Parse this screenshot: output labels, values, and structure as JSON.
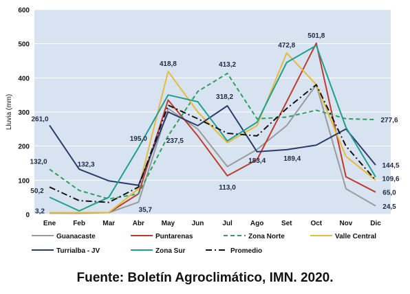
{
  "source_note": "Fuente: Boletín Agroclimático, IMN. 2020.",
  "colors": {
    "plot_bg": "#d7e3f0",
    "grid": "#ffffff",
    "axis_text": "#111111",
    "label_text": "#1f2a44"
  },
  "chart_data": {
    "type": "line",
    "title": "",
    "xlabel": "",
    "ylabel": "Lluvia (mm)",
    "ylim": [
      0,
      600
    ],
    "yticks": [
      0,
      100,
      200,
      300,
      400,
      500,
      600
    ],
    "grid": true,
    "legend_position": "bottom",
    "categories": [
      "Ene",
      "Feb",
      "Mar",
      "Abr",
      "May",
      "Jun",
      "Jul",
      "Ago",
      "Set",
      "Oct",
      "Nov",
      "Dic"
    ],
    "series": [
      {
        "name": "Guanacaste",
        "color": "#9a9a9a",
        "dash": "solid",
        "values": [
          3.2,
          3,
          5,
          35.7,
          310,
          250,
          140,
          190,
          260,
          380,
          75,
          24.5
        ]
      },
      {
        "name": "Puntarenas",
        "color": "#c0392b",
        "dash": "solid",
        "values": [
          5,
          5,
          5,
          60,
          335,
          230,
          113,
          160,
          330,
          501.8,
          110,
          65.0
        ]
      },
      {
        "name": "Zona Norte",
        "color": "#2e9e5b",
        "dash": "dashed",
        "values": [
          132.0,
          70,
          45,
          60,
          230,
          360,
          413.2,
          280,
          285,
          305,
          280,
          277.6
        ]
      },
      {
        "name": "Valle Central",
        "color": "#e8b93a",
        "dash": "solid",
        "values": [
          5,
          5,
          5,
          75,
          418.8,
          300,
          210,
          260,
          472.8,
          380,
          170,
          100
        ]
      },
      {
        "name": "Turrialba - JV",
        "color": "#2a3a6b",
        "dash": "solid",
        "values": [
          261.0,
          132.3,
          98,
          85,
          300,
          260,
          318.2,
          183.4,
          189.4,
          203,
          250,
          144.5
        ]
      },
      {
        "name": "Zona Sur",
        "color": "#1f9e8e",
        "dash": "solid",
        "values": [
          50.2,
          10,
          50,
          195.0,
          350,
          330,
          215,
          270,
          445,
          495,
          255,
          109.6
        ]
      },
      {
        "name": "Promedio",
        "color": "#111111",
        "dash": "dashdot",
        "values": [
          80,
          40,
          35,
          80,
          320,
          280,
          237.5,
          230,
          310,
          380,
          200,
          100
        ]
      }
    ],
    "annotations": [
      {
        "text": "261,0",
        "x": "Ene",
        "y": 261.0
      },
      {
        "text": "132,0",
        "x": "Ene",
        "y": 132.0
      },
      {
        "text": "50,2",
        "x": "Ene",
        "y": 50.2
      },
      {
        "text": "3,2",
        "x": "Ene",
        "y": 3.2
      },
      {
        "text": "132,3",
        "x": "Feb",
        "y": 132.3
      },
      {
        "text": "195,0",
        "x": "Abr",
        "y": 195.0
      },
      {
        "text": "35,7",
        "x": "Abr",
        "y": 35.7
      },
      {
        "text": "418,8",
        "x": "May",
        "y": 418.8
      },
      {
        "text": "237,5",
        "x": "May",
        "y": 237.5
      },
      {
        "text": "413,2",
        "x": "Jul",
        "y": 413.2
      },
      {
        "text": "318,2",
        "x": "Jul",
        "y": 318.2
      },
      {
        "text": "113,0",
        "x": "Jul",
        "y": 113.0
      },
      {
        "text": "183,4",
        "x": "Ago",
        "y": 183.4
      },
      {
        "text": "472,8",
        "x": "Set",
        "y": 472.8
      },
      {
        "text": "189,4",
        "x": "Set",
        "y": 189.4
      },
      {
        "text": "501,8",
        "x": "Oct",
        "y": 501.8
      },
      {
        "text": "277,6",
        "x": "Dic",
        "y": 277.6
      },
      {
        "text": "144,5",
        "x": "Dic",
        "y": 144.5
      },
      {
        "text": "109,6",
        "x": "Dic",
        "y": 109.6
      },
      {
        "text": "65,0",
        "x": "Dic",
        "y": 65.0
      },
      {
        "text": "24,5",
        "x": "Dic",
        "y": 24.5
      }
    ]
  }
}
